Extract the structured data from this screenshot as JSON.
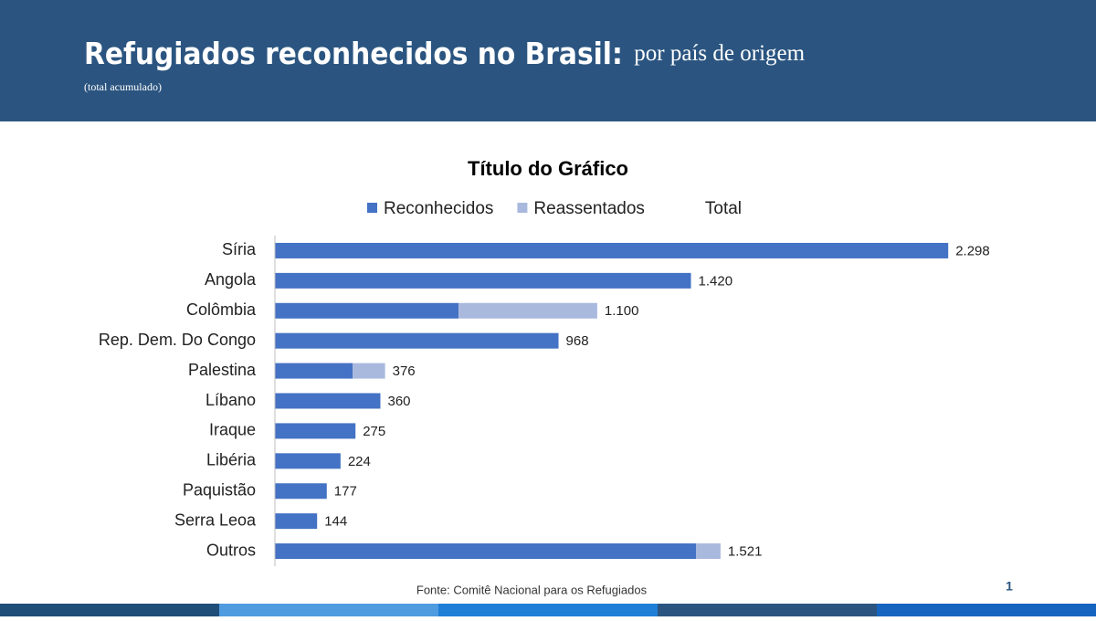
{
  "header": {
    "title": "Refugiados reconhecidos no Brasil:",
    "title_suffix": "por país de origem",
    "subtitle": "(total acumulado)"
  },
  "chart_data": {
    "type": "stacked-barh",
    "title": "Título do Gráfico",
    "categories": [
      "Síria",
      "Angola",
      "Colômbia",
      "Rep. Dem. Do Congo",
      "Palestina",
      "Líbano",
      "Iraque",
      "Libéria",
      "Paquistão",
      "Serra Leoa",
      "Outros"
    ],
    "series": [
      {
        "name": "Reconhecidos",
        "color": "#4472c4",
        "values": [
          2298,
          1420,
          627,
          968,
          265,
          360,
          275,
          224,
          177,
          144,
          1437
        ]
      },
      {
        "name": "Reassentados",
        "color": "#a9b9de",
        "values": [
          0,
          0,
          473,
          0,
          111,
          0,
          0,
          0,
          0,
          0,
          84
        ]
      },
      {
        "name": "Total",
        "values": [
          2298,
          1420,
          1100,
          968,
          376,
          360,
          275,
          224,
          177,
          144,
          1521
        ],
        "value_labels": [
          "2.298",
          "1.420",
          "1.100",
          "968",
          "376",
          "360",
          "275",
          "224",
          "177",
          "144",
          "1.521"
        ]
      }
    ],
    "xlim": [
      0,
      2500
    ]
  },
  "footer": {
    "source": "Fonte: Comitê Nacional para os Refugiados",
    "page": 1
  }
}
